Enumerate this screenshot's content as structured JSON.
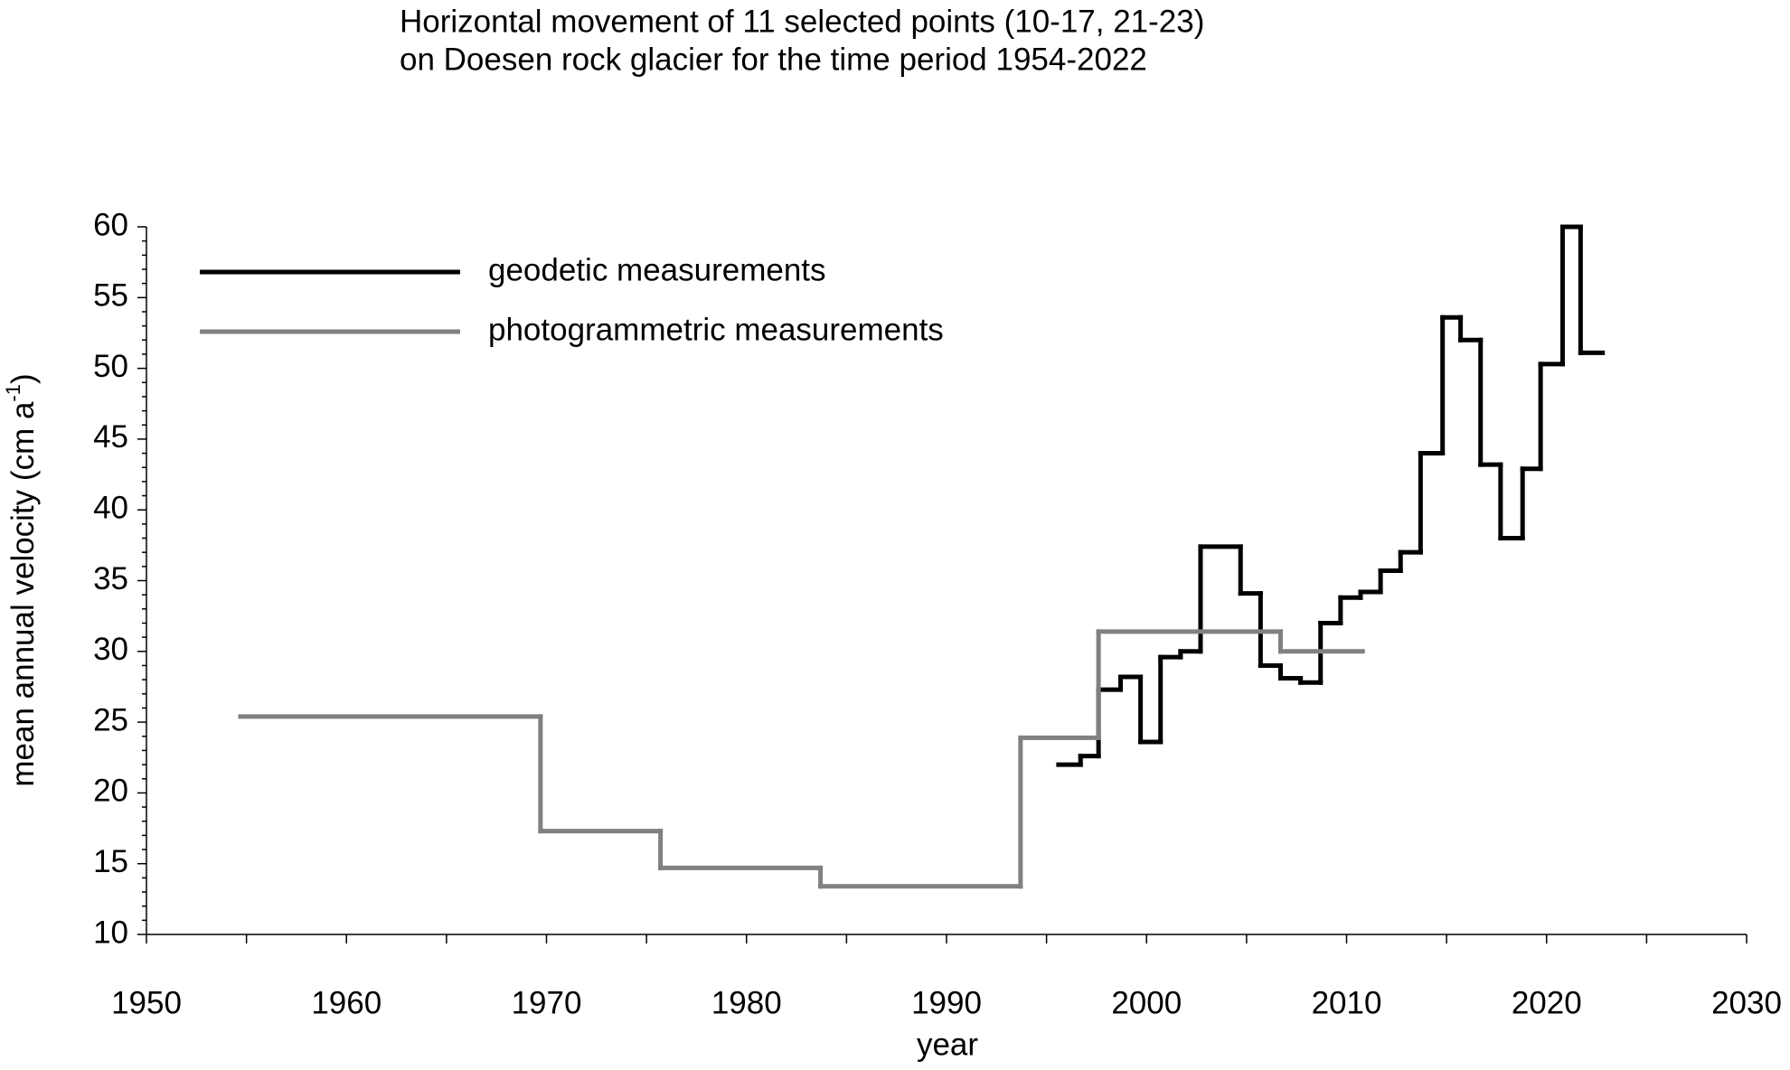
{
  "chart_data": {
    "type": "step",
    "title": [
      "Horizontal movement of 11 selected points (10-17, 21-23)",
      "on Doesen rock glacier for the time period 1954-2022"
    ],
    "xlabel": "year",
    "ylabel": [
      "mean annual velocity (cm a",
      "-1",
      ")"
    ],
    "xlim": [
      1950,
      2030
    ],
    "xticks": [
      1950,
      1960,
      1970,
      1980,
      1990,
      2000,
      2010,
      2020,
      2030
    ],
    "ylim": [
      10,
      60
    ],
    "yticks": [
      10,
      15,
      20,
      25,
      30,
      35,
      40,
      45,
      50,
      55,
      60
    ],
    "grid": false,
    "legend": "upper left",
    "series": [
      {
        "name": "geodetic measurements",
        "color": "#000000",
        "bins": [
          1995.6,
          1996.7,
          1997.6,
          1998.7,
          1999.7,
          2000.7,
          2001.7,
          2002.7,
          2004.7,
          2005.7,
          2006.7,
          2007.7,
          2008.7,
          2009.7,
          2010.7,
          2011.7,
          2012.7,
          2013.7,
          2014.8,
          2015.7,
          2016.7,
          2017.7,
          2018.8,
          2019.7,
          2020.8,
          2021.7,
          2022.8
        ],
        "values": [
          22.0,
          22.6,
          27.3,
          28.2,
          23.6,
          29.6,
          30.0,
          37.4,
          34.1,
          29.0,
          28.1,
          27.8,
          32.0,
          33.8,
          34.2,
          35.7,
          37.0,
          44.0,
          53.6,
          52.0,
          43.2,
          38.0,
          42.9,
          50.3,
          60.0,
          51.1
        ]
      },
      {
        "name": "photogrammetric measurements",
        "color": "#808080",
        "bins": [
          1954.7,
          1969.7,
          1975.7,
          1983.7,
          1993.7,
          1997.6,
          2006.7,
          2010.8
        ],
        "values": [
          25.4,
          17.3,
          14.7,
          13.4,
          23.9,
          31.4,
          30.0
        ]
      }
    ]
  }
}
